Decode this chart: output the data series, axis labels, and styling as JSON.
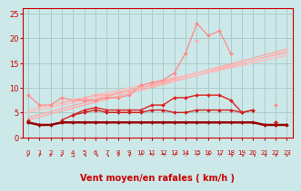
{
  "background_color": "#cce8e8",
  "grid_color": "#aacccc",
  "axis_color": "#cc0000",
  "xlabel": "Vent moyen/en rafales ( km/h )",
  "xlabel_color": "#cc0000",
  "xlabel_fontsize": 7,
  "tick_color": "#cc0000",
  "ylim": [
    0,
    26
  ],
  "xlim": [
    -0.5,
    23.5
  ],
  "yticks": [
    0,
    5,
    10,
    15,
    20,
    25
  ],
  "xticks": [
    0,
    1,
    2,
    3,
    4,
    5,
    6,
    7,
    8,
    9,
    10,
    11,
    12,
    13,
    14,
    15,
    16,
    17,
    18,
    19,
    20,
    21,
    22,
    23
  ],
  "series": [
    {
      "name": "diag1",
      "color": "#ffaaaa",
      "linewidth": 1.0,
      "marker": null,
      "markersize": 0,
      "y": [
        3.5,
        4.1,
        4.7,
        5.3,
        5.9,
        6.5,
        7.1,
        7.7,
        8.3,
        8.9,
        9.5,
        10.1,
        10.7,
        11.3,
        11.9,
        12.5,
        13.1,
        13.7,
        14.3,
        14.9,
        15.5,
        16.1,
        16.7,
        17.3
      ]
    },
    {
      "name": "diag2",
      "color": "#ffaaaa",
      "linewidth": 1.0,
      "marker": null,
      "markersize": 0,
      "y": [
        4.0,
        4.6,
        5.2,
        5.8,
        6.4,
        7.0,
        7.6,
        8.2,
        8.8,
        9.4,
        10.0,
        10.6,
        11.2,
        11.8,
        12.4,
        13.0,
        13.6,
        14.2,
        14.8,
        15.4,
        16.0,
        16.6,
        17.2,
        17.8
      ]
    },
    {
      "name": "diag3",
      "color": "#ffbbbb",
      "linewidth": 1.0,
      "marker": null,
      "markersize": 0,
      "y": [
        5.0,
        5.5,
        6.0,
        6.5,
        7.0,
        7.5,
        8.0,
        8.5,
        9.0,
        9.5,
        10.0,
        10.5,
        11.0,
        11.5,
        12.0,
        12.5,
        13.0,
        13.5,
        14.0,
        14.5,
        15.0,
        15.5,
        16.0,
        16.5
      ]
    },
    {
      "name": "diag4",
      "color": "#ffbbbb",
      "linewidth": 1.0,
      "marker": null,
      "markersize": 0,
      "y": [
        5.5,
        6.0,
        6.5,
        7.0,
        7.5,
        8.0,
        8.5,
        9.0,
        9.5,
        10.0,
        10.5,
        11.0,
        11.5,
        12.0,
        12.5,
        13.0,
        13.5,
        14.0,
        14.5,
        15.0,
        15.5,
        16.0,
        16.5,
        17.0
      ]
    },
    {
      "name": "zigzag_pink_upper",
      "color": "#ff8888",
      "linewidth": 0.9,
      "marker": "D",
      "markersize": 2.0,
      "y": [
        8.5,
        6.5,
        6.5,
        8.0,
        7.5,
        7.5,
        7.5,
        8.0,
        8.0,
        8.5,
        10.5,
        11.0,
        11.5,
        13.0,
        17.0,
        23.0,
        20.5,
        21.5,
        17.0,
        null,
        null,
        null,
        6.5,
        null
      ]
    },
    {
      "name": "zigzag_pink_mid",
      "color": "#ffaaaa",
      "linewidth": 0.9,
      "marker": "D",
      "markersize": 2.0,
      "y": [
        null,
        null,
        null,
        7.0,
        7.5,
        8.0,
        8.5,
        8.5,
        9.0,
        9.5,
        10.0,
        10.5,
        11.0,
        12.0,
        null,
        19.5,
        null,
        null,
        null,
        null,
        null,
        null,
        null,
        null
      ]
    },
    {
      "name": "dark_zigzag1",
      "color": "#dd2222",
      "linewidth": 1.0,
      "marker": "D",
      "markersize": 2.0,
      "y": [
        3.5,
        null,
        null,
        3.5,
        4.5,
        5.5,
        6.0,
        5.5,
        5.5,
        5.5,
        5.5,
        6.5,
        6.5,
        8.0,
        8.0,
        8.5,
        8.5,
        8.5,
        7.5,
        5.0,
        5.5,
        null,
        3.0,
        null
      ]
    },
    {
      "name": "dark_zigzag2",
      "color": "#cc2222",
      "linewidth": 1.0,
      "marker": "D",
      "markersize": 2.0,
      "y": [
        null,
        null,
        null,
        null,
        4.5,
        5.0,
        5.5,
        5.0,
        5.0,
        5.0,
        5.0,
        5.5,
        5.5,
        5.0,
        5.0,
        5.5,
        5.5,
        5.5,
        5.5,
        5.0,
        5.5,
        null,
        3.0,
        null
      ]
    },
    {
      "name": "flat_dark",
      "color": "#990000",
      "linewidth": 1.8,
      "marker": "D",
      "markersize": 2.0,
      "y": [
        3.0,
        2.5,
        2.5,
        3.0,
        3.0,
        3.0,
        3.0,
        3.0,
        3.0,
        3.0,
        3.0,
        3.0,
        3.0,
        3.0,
        3.0,
        3.0,
        3.0,
        3.0,
        3.0,
        3.0,
        3.0,
        2.5,
        2.5,
        2.5
      ]
    }
  ],
  "arrow_chars": [
    "↙",
    "↓",
    "↙",
    "↙",
    "→",
    "↘",
    "↘",
    "↘",
    "↓",
    "↙",
    "↗",
    "↖",
    "↖",
    "↗",
    "↗",
    "↗",
    "↗",
    "↗",
    "↘",
    "↘",
    "↘",
    "↘",
    "↙",
    "↙"
  ]
}
